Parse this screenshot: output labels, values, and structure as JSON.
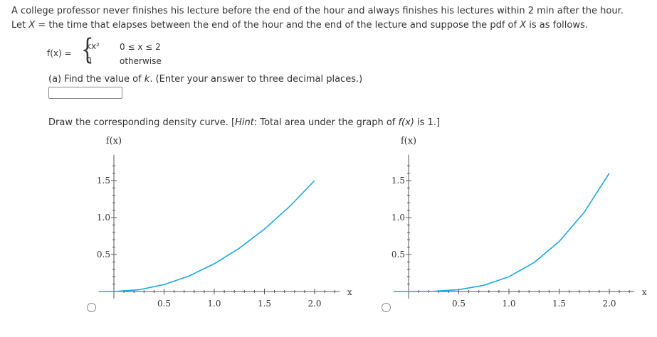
{
  "question": {
    "line1": "A college professor never finishes his lecture before the end of the hour and always finishes his lectures within 2 min after the hour.",
    "line2_pre": "Let ",
    "line2_var": "X",
    "line2_mid": " = the time that elapses between the end of the hour and the end of the lecture and suppose the pdf of ",
    "line2_var2": "X",
    "line2_post": " is as follows."
  },
  "pdf": {
    "lhs": "f(x) =",
    "case1_expr": "kx²",
    "case1_cond": "0 ≤ x ≤ 2",
    "case2_expr": "0",
    "case2_cond": "otherwise"
  },
  "part_a": {
    "pre": "(a) Find the value of ",
    "var": "k",
    "post": ". (Enter your answer to three decimal places.)",
    "answer_value": ""
  },
  "draw": {
    "pre": "Draw the corresponding density curve. [",
    "hint": "Hint",
    "mid": ": Total area under the graph of ",
    "fx": "f(x)",
    "post": " is 1.]"
  },
  "chart_data": [
    {
      "type": "line",
      "ylabel": "f(x)",
      "xlabel": "x",
      "xlim": [
        -0.15,
        2.25
      ],
      "ylim": [
        0,
        1.85
      ],
      "x_ticks": [
        "0.5",
        "1.0",
        "1.5",
        "2.0"
      ],
      "y_ticks": [
        "0.5",
        "1.0",
        "1.5"
      ],
      "series": [
        {
          "function": "0.375 x^2",
          "x": [
            0,
            0.25,
            0.5,
            0.75,
            1.0,
            1.25,
            1.5,
            1.75,
            2.0
          ],
          "values": [
            0,
            0.023,
            0.094,
            0.211,
            0.375,
            0.586,
            0.844,
            1.148,
            1.5
          ],
          "color": "#1aa7e6"
        }
      ]
    },
    {
      "type": "line",
      "ylabel": "f(x)",
      "xlabel": "x",
      "xlim": [
        -0.15,
        2.25
      ],
      "ylim": [
        0,
        1.85
      ],
      "x_ticks": [
        "0.5",
        "1.0",
        "1.5",
        "2.0"
      ],
      "y_ticks": [
        "0.5",
        "1.0",
        "1.5"
      ],
      "series": [
        {
          "function": "0.2 x^3",
          "x": [
            0,
            0.25,
            0.5,
            0.75,
            1.0,
            1.25,
            1.5,
            1.75,
            2.0
          ],
          "values": [
            0,
            0.003,
            0.025,
            0.084,
            0.2,
            0.391,
            0.675,
            1.072,
            1.6
          ],
          "color": "#1aa7e6"
        }
      ]
    }
  ]
}
